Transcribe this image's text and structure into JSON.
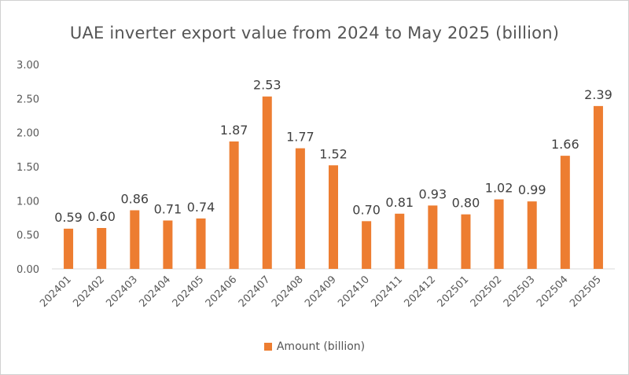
{
  "chart_data": {
    "type": "bar",
    "title": "UAE inverter export value from 2024 to May 2025 (billion)",
    "categories": [
      "202401",
      "202402",
      "202403",
      "202404",
      "202405",
      "202406",
      "202407",
      "202408",
      "202409",
      "202410",
      "202411",
      "202412",
      "202501",
      "202502",
      "202503",
      "202504",
      "202505"
    ],
    "series": [
      {
        "name": "Amount (billion)",
        "values": [
          0.59,
          0.6,
          0.86,
          0.71,
          0.74,
          1.87,
          2.53,
          1.77,
          1.52,
          0.7,
          0.81,
          0.93,
          0.8,
          1.02,
          0.99,
          1.66,
          2.39
        ],
        "color": "#ED7D31"
      }
    ],
    "ylim": [
      0,
      3
    ],
    "yticks": [
      "0.00",
      "0.50",
      "1.00",
      "1.50",
      "2.00",
      "2.50",
      "3.00"
    ],
    "data_labels": [
      "0.59",
      "0.60",
      "0.86",
      "0.71",
      "0.74",
      "1.87",
      "2.53",
      "1.77",
      "1.52",
      "0.70",
      "0.81",
      "0.93",
      "0.80",
      "1.02",
      "0.99",
      "1.66",
      "2.39"
    ],
    "grid": false,
    "legend_position": "bottom",
    "xlabel": "",
    "ylabel": ""
  },
  "legend": {
    "label": "Amount (billion)"
  }
}
